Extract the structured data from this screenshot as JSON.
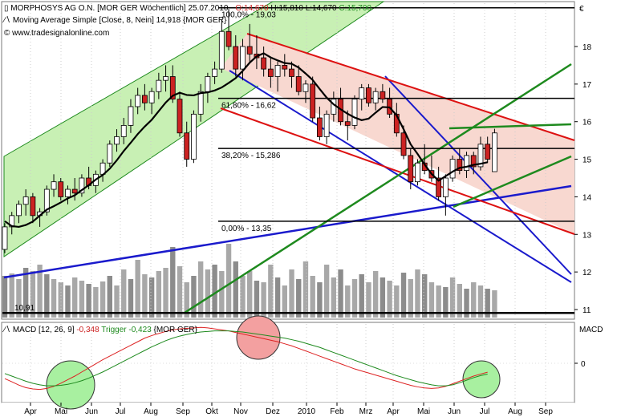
{
  "header": {
    "line1_name": "MORPHOSYS AG O.N. [MOR GER  Wöchentlich] 25.07.2010 - ",
    "line1_o": "O:14,670",
    "line1_h": "H:15,810",
    "line1_l": "L:14,670",
    "line1_c": "C:15,700",
    "line2": "Moving Average Simple [Close, 8, Nein] 14,918 {MOR GER}",
    "line3": "© www.tradesignalonline.com",
    "currency": "€"
  },
  "colors": {
    "up": "#ffffff",
    "down": "#cc2222",
    "ma": "#000000",
    "channel_green": "#c8f0b4",
    "channel_red": "#f8d8d0",
    "blue_line": "#1a1acc",
    "red_line": "#dd1111",
    "green_line": "#1e8a1e",
    "macd": "#dd2222",
    "trigger": "#1e8a1e",
    "volume": "#a8a8a8"
  },
  "chart_data": [
    {
      "type": "candlestick",
      "title": "MORPHOSYS AG O.N.",
      "ylim": [
        10.8,
        19.3
      ],
      "yticks": [
        11,
        12,
        13,
        14,
        15,
        16,
        17,
        18
      ],
      "x_labels": [
        "Apr",
        "Mai",
        "Jun",
        "Jul",
        "Aug",
        "Sep",
        "Okt",
        "Nov",
        "Dez",
        "2010",
        "Feb",
        "Mrz",
        "Apr",
        "Mai",
        "Jun",
        "Jul",
        "Aug",
        "Sep"
      ],
      "ohlc": [
        [
          12.6,
          13.3,
          12.5,
          13.2
        ],
        [
          13.2,
          13.6,
          13.0,
          13.5
        ],
        [
          13.5,
          13.9,
          13.3,
          13.8
        ],
        [
          13.8,
          14.2,
          13.5,
          14.0
        ],
        [
          14.0,
          14.1,
          13.3,
          13.5
        ],
        [
          13.5,
          13.7,
          13.2,
          13.6
        ],
        [
          13.6,
          14.3,
          13.5,
          14.2
        ],
        [
          14.2,
          14.6,
          14.0,
          14.4
        ],
        [
          14.4,
          14.5,
          13.9,
          14.0
        ],
        [
          14.0,
          14.3,
          13.8,
          14.2
        ],
        [
          14.2,
          14.5,
          13.9,
          14.1
        ],
        [
          14.1,
          14.6,
          14.0,
          14.5
        ],
        [
          14.5,
          14.8,
          14.2,
          14.3
        ],
        [
          14.3,
          14.7,
          14.1,
          14.6
        ],
        [
          14.6,
          15.0,
          14.4,
          14.9
        ],
        [
          14.9,
          15.5,
          14.8,
          15.4
        ],
        [
          15.4,
          15.8,
          15.2,
          15.6
        ],
        [
          15.6,
          16.1,
          15.4,
          15.9
        ],
        [
          15.9,
          16.6,
          15.7,
          16.4
        ],
        [
          16.4,
          16.9,
          16.2,
          16.7
        ],
        [
          16.7,
          17.0,
          16.3,
          16.5
        ],
        [
          16.5,
          16.9,
          16.2,
          16.8
        ],
        [
          16.8,
          17.3,
          16.6,
          17.1
        ],
        [
          17.1,
          17.5,
          16.8,
          17.2
        ],
        [
          17.2,
          17.5,
          16.5,
          16.6
        ],
        [
          16.6,
          16.8,
          15.6,
          15.7
        ],
        [
          15.7,
          16.0,
          14.8,
          15.0
        ],
        [
          15.0,
          16.3,
          14.9,
          16.2
        ],
        [
          16.2,
          17.0,
          16.0,
          16.8
        ],
        [
          16.8,
          17.3,
          16.5,
          17.2
        ],
        [
          17.2,
          17.6,
          17.0,
          17.4
        ],
        [
          17.4,
          18.7,
          17.3,
          18.4
        ],
        [
          18.4,
          19.0,
          17.9,
          18.0
        ],
        [
          18.0,
          18.3,
          17.2,
          17.4
        ],
        [
          17.4,
          18.2,
          17.1,
          18.0
        ],
        [
          18.0,
          18.6,
          17.6,
          17.8
        ],
        [
          17.8,
          18.3,
          17.4,
          17.7
        ],
        [
          17.7,
          18.0,
          17.2,
          17.4
        ],
        [
          17.4,
          17.7,
          16.9,
          17.2
        ],
        [
          17.2,
          17.6,
          16.8,
          17.5
        ],
        [
          17.5,
          17.8,
          17.2,
          17.4
        ],
        [
          17.4,
          17.6,
          16.9,
          17.2
        ],
        [
          17.2,
          17.5,
          16.7,
          16.8
        ],
        [
          16.8,
          17.1,
          16.5,
          17.0
        ],
        [
          17.0,
          17.2,
          16.0,
          16.1
        ],
        [
          16.1,
          16.4,
          15.5,
          15.6
        ],
        [
          15.6,
          16.3,
          15.4,
          16.2
        ],
        [
          16.2,
          16.8,
          16.0,
          16.6
        ],
        [
          16.6,
          16.9,
          15.9,
          16.0
        ],
        [
          16.0,
          16.3,
          15.5,
          15.9
        ],
        [
          15.9,
          16.7,
          15.8,
          16.6
        ],
        [
          16.6,
          17.0,
          16.3,
          16.9
        ],
        [
          16.9,
          17.0,
          16.4,
          16.5
        ],
        [
          16.5,
          16.9,
          16.3,
          16.8
        ],
        [
          16.8,
          17.0,
          16.5,
          16.6
        ],
        [
          16.6,
          16.9,
          16.1,
          16.2
        ],
        [
          16.2,
          16.5,
          15.6,
          15.7
        ],
        [
          15.7,
          15.9,
          15.0,
          15.1
        ],
        [
          15.1,
          15.3,
          14.2,
          14.4
        ],
        [
          14.4,
          15.0,
          14.3,
          14.9
        ],
        [
          14.9,
          15.4,
          14.6,
          14.7
        ],
        [
          14.7,
          15.1,
          14.4,
          14.5
        ],
        [
          14.5,
          14.8,
          13.9,
          14.0
        ],
        [
          14.0,
          14.6,
          13.5,
          14.5
        ],
        [
          14.5,
          15.1,
          14.4,
          15.0
        ],
        [
          15.0,
          15.3,
          14.6,
          14.7
        ],
        [
          14.7,
          15.2,
          14.5,
          15.1
        ],
        [
          15.1,
          15.2,
          14.6,
          14.8
        ],
        [
          14.8,
          15.6,
          14.7,
          15.4
        ],
        [
          15.4,
          15.6,
          14.9,
          15.0
        ],
        [
          14.67,
          15.81,
          14.67,
          15.7
        ]
      ],
      "ma8": [
        13.35,
        13.22,
        13.2,
        13.25,
        13.34,
        13.5,
        13.66,
        13.75,
        13.85,
        13.96,
        14.04,
        14.18,
        14.31,
        14.46,
        14.58,
        14.75,
        14.97,
        15.22,
        15.44,
        15.67,
        15.87,
        16.05,
        16.28,
        16.51,
        16.69,
        16.77,
        16.71,
        16.7,
        16.76,
        16.78,
        16.83,
        16.91,
        17.03,
        17.16,
        17.35,
        17.57,
        17.74,
        17.82,
        17.71,
        17.63,
        17.56,
        17.54,
        17.44,
        17.28,
        17.11,
        16.87,
        16.64,
        16.46,
        16.33,
        16.21,
        16.11,
        16.04,
        16.08,
        16.24,
        16.39,
        16.38,
        16.17,
        15.8,
        15.4,
        15.14,
        14.86,
        14.61,
        14.43,
        14.55,
        14.67,
        14.77,
        14.8,
        14.85,
        14.88,
        14.92
      ]
    },
    {
      "type": "bar",
      "title": "Volume",
      "values": [
        52,
        55,
        48,
        62,
        58,
        66,
        54,
        48,
        44,
        40,
        50,
        46,
        42,
        38,
        45,
        52,
        40,
        60,
        48,
        72,
        54,
        50,
        58,
        62,
        88,
        64,
        44,
        52,
        70,
        60,
        66,
        58,
        92,
        70,
        52,
        58,
        46,
        44,
        66,
        50,
        40,
        60,
        48,
        70,
        52,
        44,
        66,
        50,
        60,
        40,
        48,
        54,
        44,
        58,
        50,
        46,
        40,
        56,
        48,
        60,
        54,
        44,
        40,
        38,
        50,
        42,
        36,
        44,
        40,
        36,
        34
      ]
    },
    {
      "type": "line",
      "title": "MACD",
      "yticks": [
        0
      ],
      "series": [
        {
          "name": "MACD",
          "values": [
            -0.6,
            -0.72,
            -0.85,
            -0.95,
            -1.0,
            -1.02,
            -0.98,
            -0.9,
            -0.78,
            -0.64,
            -0.5,
            -0.34,
            -0.18,
            -0.02,
            0.14,
            0.28,
            0.42,
            0.56,
            0.7,
            0.84,
            0.98,
            1.08,
            1.16,
            1.24,
            1.3,
            1.34,
            1.36,
            1.38,
            1.4,
            1.38,
            1.34,
            1.3,
            1.26,
            1.2,
            1.14,
            1.08,
            1.02,
            0.96,
            0.9,
            0.84,
            0.76,
            0.68,
            0.58,
            0.48,
            0.38,
            0.28,
            0.18,
            0.08,
            -0.02,
            -0.12,
            -0.22,
            -0.3,
            -0.38,
            -0.46,
            -0.54,
            -0.62,
            -0.7,
            -0.78,
            -0.86,
            -0.92,
            -0.96,
            -0.98,
            -0.96,
            -0.9,
            -0.8,
            -0.7,
            -0.6,
            -0.5,
            -0.42,
            -0.348
          ]
        },
        {
          "name": "Trigger",
          "values": [
            -0.4,
            -0.5,
            -0.6,
            -0.7,
            -0.78,
            -0.84,
            -0.88,
            -0.88,
            -0.86,
            -0.82,
            -0.76,
            -0.68,
            -0.58,
            -0.46,
            -0.34,
            -0.2,
            -0.06,
            0.08,
            0.22,
            0.36,
            0.5,
            0.64,
            0.76,
            0.88,
            0.98,
            1.06,
            1.12,
            1.18,
            1.22,
            1.24,
            1.26,
            1.26,
            1.26,
            1.24,
            1.22,
            1.18,
            1.14,
            1.1,
            1.06,
            1.02,
            0.98,
            0.92,
            0.86,
            0.78,
            0.7,
            0.62,
            0.52,
            0.42,
            0.32,
            0.22,
            0.12,
            0.02,
            -0.08,
            -0.18,
            -0.28,
            -0.38,
            -0.48,
            -0.56,
            -0.64,
            -0.72,
            -0.78,
            -0.84,
            -0.88,
            -0.88,
            -0.84,
            -0.76,
            -0.66,
            -0.56,
            -0.48,
            -0.423
          ]
        }
      ]
    }
  ],
  "annotations": {
    "fib_100": "100,0% - 19,03",
    "fib_618": "61,80% - 16,62",
    "fib_382": "38,20% - 15,286",
    "fib_0": "0,00% - 13,35",
    "low_level": "10,91"
  },
  "macd_panel": {
    "label_name": "MACD [12, 26, 9] ",
    "label_macd": "-0,348",
    "label_trigger": "Trigger -0,423",
    "label_tail": "{MOR GER}",
    "title": "MACD",
    "zero_tick": "0"
  }
}
